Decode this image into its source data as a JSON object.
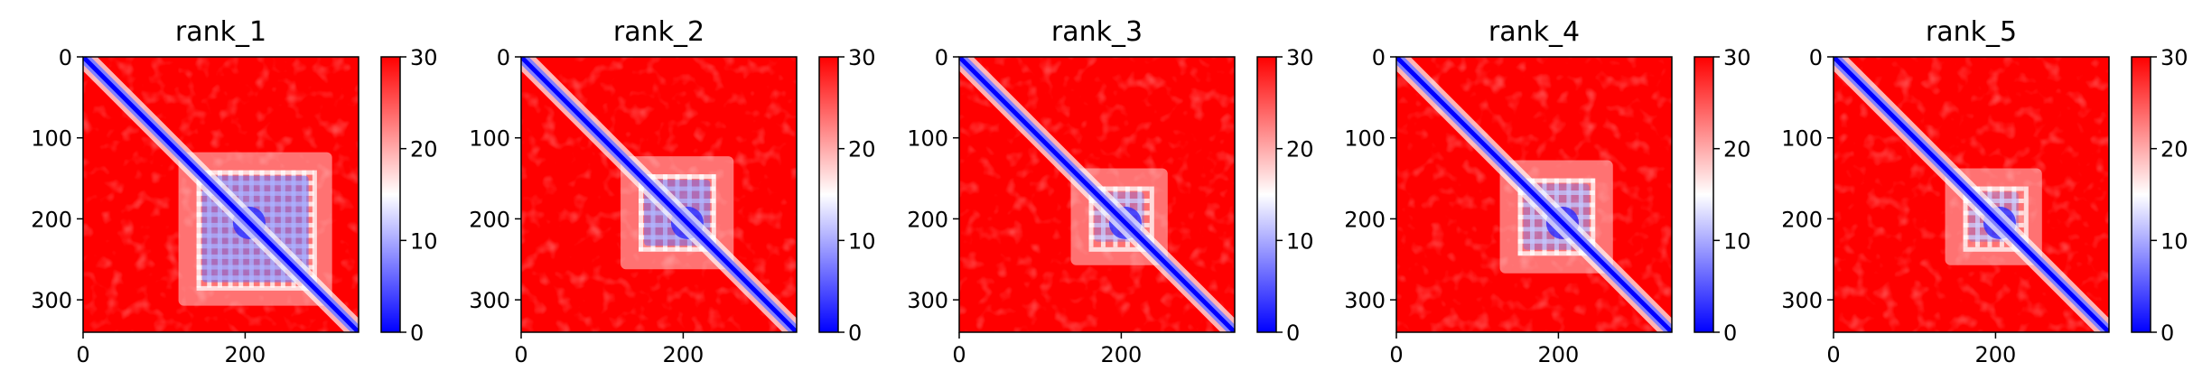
{
  "chart_data": {
    "type": "heatmap",
    "panels": [
      {
        "title": "rank_1"
      },
      {
        "title": "rank_2"
      },
      {
        "title": "rank_3"
      },
      {
        "title": "rank_4"
      },
      {
        "title": "rank_5"
      }
    ],
    "xticks": [
      0,
      200
    ],
    "yticks": [
      0,
      100,
      200,
      300
    ],
    "xlim": [
      0,
      340
    ],
    "ylim": [
      340,
      0
    ],
    "colorbar": {
      "ticks": [
        0,
        10,
        20,
        30
      ],
      "range": [
        0,
        30
      ],
      "colormap": "bwr"
    },
    "colors": {
      "low": "#0000ff",
      "mid": "#ffffff",
      "high": "#ff0000"
    },
    "grid": false
  }
}
